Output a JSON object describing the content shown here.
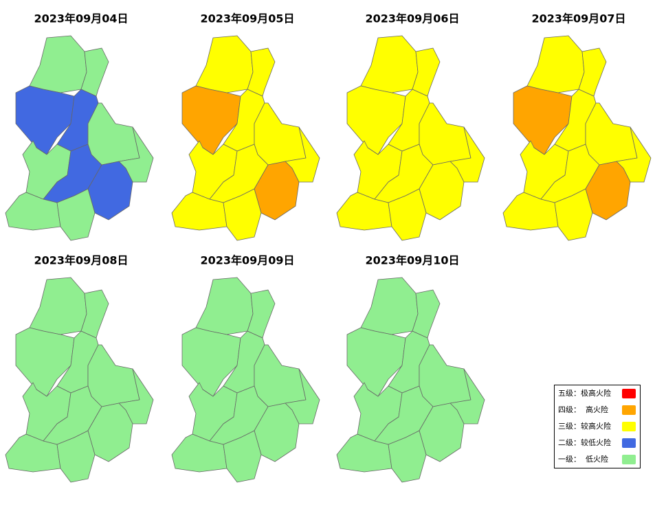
{
  "maps": [
    {
      "title": "2023年09月04日",
      "region_colors": [
        "#90ee90",
        "#90ee90",
        "#4169e1",
        "#4169e1",
        "#90ee90",
        "#90ee90",
        "#90ee90",
        "#4169e1",
        "#4169e1",
        "#90ee90",
        "#90ee90"
      ]
    },
    {
      "title": "2023年09月05日",
      "region_colors": [
        "#ffff00",
        "#ffff00",
        "#ffa500",
        "#ffff00",
        "#ffff00",
        "#ffff00",
        "#ffff00",
        "#ffff00",
        "#ffa500",
        "#ffff00",
        "#ffff00"
      ]
    },
    {
      "title": "2023年09月06日",
      "region_colors": [
        "#ffff00",
        "#ffff00",
        "#ffff00",
        "#ffff00",
        "#ffff00",
        "#ffff00",
        "#ffff00",
        "#ffff00",
        "#ffff00",
        "#ffff00",
        "#ffff00"
      ]
    },
    {
      "title": "2023年09月07日",
      "region_colors": [
        "#ffff00",
        "#ffff00",
        "#ffa500",
        "#ffff00",
        "#ffff00",
        "#ffff00",
        "#ffff00",
        "#ffff00",
        "#ffa500",
        "#ffff00",
        "#ffff00"
      ]
    },
    {
      "title": "2023年09月08日",
      "region_colors": [
        "#90ee90",
        "#90ee90",
        "#90ee90",
        "#90ee90",
        "#90ee90",
        "#90ee90",
        "#90ee90",
        "#90ee90",
        "#90ee90",
        "#90ee90",
        "#90ee90"
      ]
    },
    {
      "title": "2023年09月09日",
      "region_colors": [
        "#90ee90",
        "#90ee90",
        "#90ee90",
        "#90ee90",
        "#90ee90",
        "#90ee90",
        "#90ee90",
        "#90ee90",
        "#90ee90",
        "#90ee90",
        "#90ee90"
      ]
    },
    {
      "title": "2023年09月10日",
      "region_colors": [
        "#90ee90",
        "#90ee90",
        "#90ee90",
        "#90ee90",
        "#90ee90",
        "#90ee90",
        "#90ee90",
        "#90ee90",
        "#90ee90",
        "#90ee90",
        "#90ee90"
      ]
    }
  ],
  "legend": [
    {
      "label": "五级：极高火险",
      "color": "#ff0000"
    },
    {
      "label": "四级：  高火险",
      "color": "#ffa500"
    },
    {
      "label": "三级：较高火险",
      "color": "#ffff00"
    },
    {
      "label": "二级：较低火险",
      "color": "#4169e1"
    },
    {
      "label": "一级：  低火险",
      "color": "#90ee90"
    }
  ]
}
